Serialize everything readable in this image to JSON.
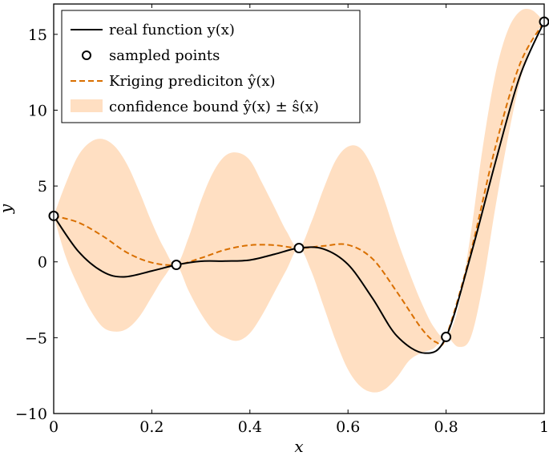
{
  "chart_data": {
    "type": "line",
    "xlabel": "x",
    "ylabel": "y",
    "xlim": [
      0,
      1
    ],
    "ylim": [
      -10,
      17
    ],
    "x_ticks": [
      0,
      0.2,
      0.4,
      0.6,
      0.8,
      1
    ],
    "x_tick_labels": [
      "0",
      "0.2",
      "0.4",
      "0.6",
      "0.8",
      "1"
    ],
    "y_ticks": [
      -10,
      -5,
      0,
      5,
      10,
      15
    ],
    "y_tick_labels": [
      "−10",
      "−5",
      "0",
      "5",
      "10",
      "15"
    ],
    "grid": false,
    "legend_position": "top-left",
    "legend": {
      "real": "real function y(x)",
      "sampled": "sampled points",
      "kriging": "Kriging prediciton ŷ(x)",
      "bound": "confidence bound ŷ(x) ± ŝ(x)"
    },
    "colors": {
      "real": "#000000",
      "kriging": "#d96f00",
      "bound": "#ffdfc2",
      "marker_fill": "#ffffff"
    },
    "series": [
      {
        "name": "real function y(x)",
        "style": "solid",
        "x": [
          0,
          0.05,
          0.1,
          0.143,
          0.2,
          0.25,
          0.3,
          0.35,
          0.4,
          0.45,
          0.5,
          0.55,
          0.6,
          0.65,
          0.7,
          0.757,
          0.8,
          0.85,
          0.9,
          0.95,
          1
        ],
        "y": [
          3.03,
          0.7,
          -0.65,
          -0.99,
          -0.6,
          -0.2,
          0.04,
          0.05,
          0.12,
          0.5,
          0.91,
          0.85,
          -0.17,
          -2.4,
          -4.9,
          -6.02,
          -4.95,
          0.4,
          6.5,
          12.2,
          15.83
        ]
      },
      {
        "name": "Kriging prediciton ŷ(x)",
        "style": "dashed",
        "x": [
          0,
          0.05,
          0.1,
          0.15,
          0.2,
          0.25,
          0.3,
          0.35,
          0.4,
          0.45,
          0.5,
          0.55,
          0.6,
          0.65,
          0.7,
          0.75,
          0.78,
          0.8,
          0.85,
          0.9,
          0.95,
          1
        ],
        "y": [
          3.03,
          2.6,
          1.7,
          0.6,
          -0.05,
          -0.2,
          0.25,
          0.8,
          1.1,
          1.1,
          0.91,
          1.05,
          1.12,
          0.2,
          -2.0,
          -4.4,
          -5.3,
          -4.95,
          0.6,
          7.5,
          13.0,
          15.83
        ]
      },
      {
        "name": "sampled points",
        "x": [
          0,
          0.25,
          0.5,
          0.8,
          1
        ],
        "y": [
          3.03,
          -0.2,
          0.91,
          -4.95,
          15.83
        ]
      }
    ],
    "confidence_bound": {
      "name": "confidence bound ŷ(x) ± ŝ(x)",
      "x": [
        0,
        0.025,
        0.05,
        0.075,
        0.1,
        0.125,
        0.15,
        0.175,
        0.2,
        0.225,
        0.25,
        0.275,
        0.3,
        0.325,
        0.35,
        0.375,
        0.4,
        0.425,
        0.45,
        0.475,
        0.5,
        0.525,
        0.55,
        0.575,
        0.6,
        0.625,
        0.65,
        0.675,
        0.7,
        0.725,
        0.75,
        0.775,
        0.8,
        0.825,
        0.85,
        0.875,
        0.9,
        0.925,
        0.95,
        0.975,
        1
      ],
      "upper": [
        3.03,
        5.2,
        7.0,
        7.9,
        8.1,
        7.6,
        6.4,
        4.6,
        2.6,
        0.9,
        -0.2,
        1.6,
        4.0,
        5.9,
        7.0,
        7.2,
        6.7,
        5.2,
        3.6,
        2.0,
        0.91,
        2.6,
        4.8,
        6.7,
        7.6,
        7.5,
        6.2,
        4.0,
        1.5,
        -0.7,
        -2.7,
        -4.3,
        -4.95,
        -3.0,
        1.8,
        7.6,
        12.3,
        15.2,
        16.5,
        16.6,
        15.83
      ],
      "lower": [
        3.03,
        0.3,
        -1.6,
        -3.2,
        -4.3,
        -4.6,
        -4.4,
        -3.6,
        -2.3,
        -1.0,
        -0.2,
        -1.9,
        -3.4,
        -4.5,
        -5.0,
        -5.2,
        -4.7,
        -3.5,
        -2.0,
        -0.5,
        0.91,
        -0.6,
        -2.9,
        -5.2,
        -7.1,
        -8.2,
        -8.6,
        -8.4,
        -7.6,
        -6.5,
        -6.0,
        -5.7,
        -4.95,
        -5.6,
        -5.0,
        -1.5,
        3.5,
        8.0,
        11.8,
        14.5,
        15.83
      ]
    }
  }
}
